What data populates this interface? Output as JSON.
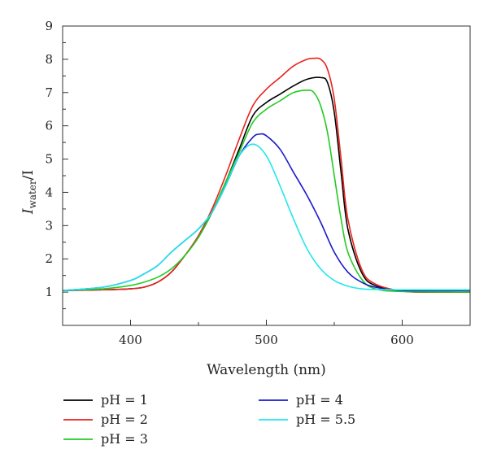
{
  "chart_data": {
    "type": "line",
    "title": "",
    "xlabel": "Wavelength (nm)",
    "ylabel": {
      "main": "I",
      "subscript": "water",
      "suffix": "/I"
    },
    "xlim": [
      350,
      650
    ],
    "ylim": [
      0,
      9
    ],
    "x_ticks": [
      400,
      500,
      600
    ],
    "y_ticks": [
      1,
      2,
      3,
      4,
      5,
      6,
      7,
      8,
      9
    ],
    "grid": false,
    "legend_position": "bottom",
    "series": [
      {
        "name": "pH = 1",
        "color": "#000000",
        "x": [
          350,
          380,
          400,
          410,
          420,
          430,
          440,
          450,
          460,
          470,
          480,
          490,
          500,
          510,
          520,
          530,
          540,
          545,
          550,
          555,
          560,
          570,
          580,
          600,
          620,
          650
        ],
        "y": [
          1.05,
          1.07,
          1.1,
          1.15,
          1.3,
          1.6,
          2.1,
          2.65,
          3.4,
          4.3,
          5.3,
          6.3,
          6.7,
          6.95,
          7.2,
          7.4,
          7.45,
          7.3,
          6.4,
          4.6,
          2.9,
          1.6,
          1.2,
          1.03,
          1.0,
          1.0
        ]
      },
      {
        "name": "pH = 2",
        "color": "#e8231f",
        "x": [
          350,
          380,
          400,
          410,
          420,
          430,
          440,
          450,
          460,
          470,
          480,
          490,
          500,
          510,
          520,
          530,
          535,
          540,
          545,
          550,
          555,
          560,
          570,
          580,
          600,
          620,
          650
        ],
        "y": [
          1.05,
          1.07,
          1.1,
          1.15,
          1.3,
          1.6,
          2.1,
          2.7,
          3.5,
          4.5,
          5.6,
          6.6,
          7.1,
          7.45,
          7.8,
          8.0,
          8.03,
          8.0,
          7.7,
          6.8,
          5.0,
          3.2,
          1.7,
          1.25,
          1.03,
          1.0,
          1.0
        ]
      },
      {
        "name": "pH = 3",
        "color": "#22cc22",
        "x": [
          350,
          380,
          400,
          410,
          420,
          430,
          440,
          450,
          460,
          470,
          480,
          490,
          500,
          510,
          520,
          530,
          535,
          540,
          545,
          550,
          555,
          560,
          570,
          580,
          600,
          650
        ],
        "y": [
          1.05,
          1.1,
          1.2,
          1.3,
          1.45,
          1.7,
          2.1,
          2.65,
          3.4,
          4.3,
          5.2,
          6.1,
          6.5,
          6.75,
          7.0,
          7.07,
          7.0,
          6.6,
          5.8,
          4.5,
          3.2,
          2.2,
          1.4,
          1.1,
          1.02,
          1.0
        ]
      },
      {
        "name": "pH = 4",
        "color": "#1a1acc",
        "x": [
          350,
          380,
          400,
          410,
          420,
          430,
          440,
          450,
          460,
          470,
          480,
          490,
          495,
          500,
          510,
          520,
          530,
          540,
          550,
          560,
          570,
          580,
          600,
          650
        ],
        "y": [
          1.05,
          1.15,
          1.35,
          1.55,
          1.8,
          2.2,
          2.55,
          2.9,
          3.4,
          4.2,
          5.1,
          5.65,
          5.75,
          5.7,
          5.3,
          4.6,
          3.9,
          3.1,
          2.2,
          1.6,
          1.3,
          1.15,
          1.05,
          1.05
        ]
      },
      {
        "name": "pH = 5.5",
        "color": "#22e6ee",
        "x": [
          350,
          380,
          400,
          410,
          420,
          430,
          440,
          450,
          460,
          470,
          480,
          490,
          500,
          510,
          520,
          530,
          540,
          550,
          560,
          570,
          580,
          600,
          650
        ],
        "y": [
          1.05,
          1.15,
          1.35,
          1.55,
          1.8,
          2.2,
          2.55,
          2.9,
          3.4,
          4.2,
          5.1,
          5.45,
          5.1,
          4.2,
          3.2,
          2.3,
          1.7,
          1.35,
          1.18,
          1.1,
          1.08,
          1.07,
          1.07
        ]
      }
    ]
  }
}
